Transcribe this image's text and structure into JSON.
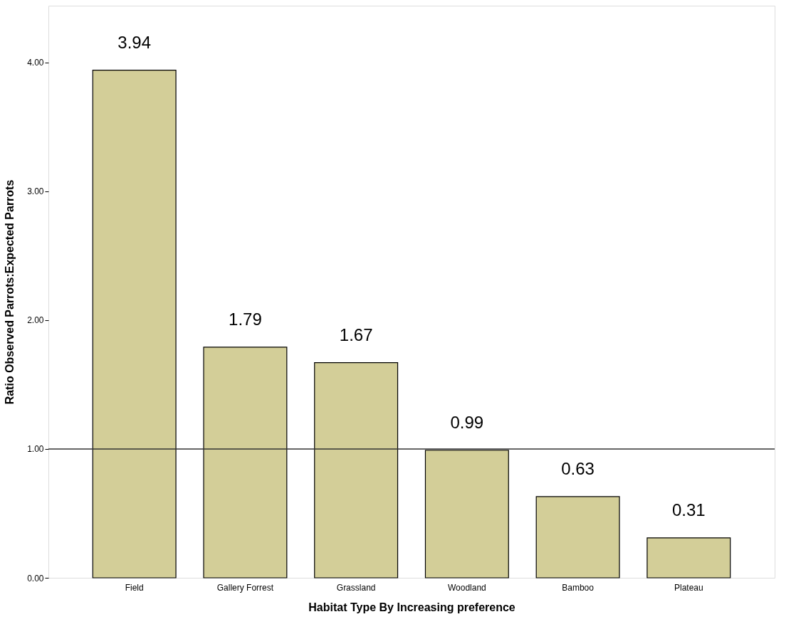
{
  "chart_data": {
    "type": "bar",
    "xlabel": "Habitat Type By Increasing preference",
    "ylabel": "Ratio Observed Parrots:Expected Parrots",
    "categories": [
      "Field",
      "Gallery Forrest",
      "Grassland",
      "Woodland",
      "Bamboo",
      "Plateau"
    ],
    "values": [
      3.94,
      1.79,
      1.67,
      0.99,
      0.63,
      0.31
    ],
    "color": "#d3ce98",
    "ylim": [
      0,
      4.44
    ],
    "yticks": [
      {
        "value": 0,
        "label": "0.00"
      },
      {
        "value": 1,
        "label": "1.00"
      },
      {
        "value": 2,
        "label": "2.00"
      },
      {
        "value": 3,
        "label": "3.00"
      },
      {
        "value": 4,
        "label": "4.00"
      }
    ],
    "ref_lines": [
      {
        "axis": "y",
        "value": 1,
        "color": "#333333"
      }
    ],
    "data_labels": true,
    "grid": false
  }
}
